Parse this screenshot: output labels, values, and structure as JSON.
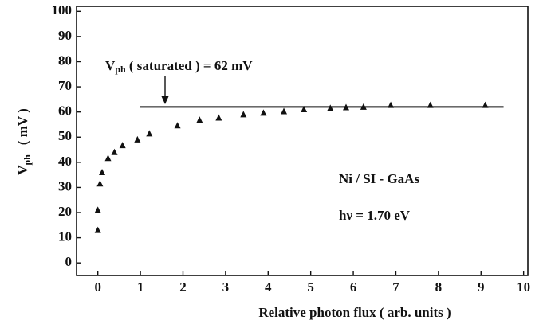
{
  "chart_data": {
    "type": "scatter",
    "x_label": "Relative photon flux  ( arb. units )",
    "y_label": {
      "main": "V",
      "sub": "ph",
      "unit": "( mV )"
    },
    "annotations": {
      "saturation_label": {
        "main": "V",
        "sub": "ph",
        "rest": " ( saturated ) = 62 mV"
      },
      "sample": "Ni / SI - GaAs",
      "photon_energy": "hν = 1.70 eV"
    },
    "saturation_line": {
      "value": 62,
      "x": [
        0.99,
        9.53
      ]
    },
    "x": [
      0.0,
      0.0,
      0.05,
      0.1,
      0.24,
      0.39,
      0.58,
      0.93,
      1.21,
      1.87,
      2.39,
      2.84,
      3.42,
      3.89,
      4.37,
      4.84,
      5.46,
      5.83,
      6.24,
      6.88,
      7.81,
      9.1
    ],
    "values": [
      13,
      21,
      31.5,
      36,
      41.6,
      44,
      46.7,
      49,
      51.4,
      54.6,
      56.8,
      57.7,
      59,
      59.6,
      60.2,
      61,
      61.5,
      61.8,
      62,
      62.7,
      62.7,
      62.7
    ],
    "color": "#111111",
    "xlim": [
      -0.5,
      10.1
    ],
    "ylim": [
      -5,
      102
    ],
    "xticks": [
      0,
      1,
      2,
      3,
      4,
      5,
      6,
      7,
      8,
      9,
      10
    ],
    "yticks": [
      0,
      10,
      20,
      30,
      40,
      50,
      60,
      70,
      80,
      90,
      100
    ]
  }
}
